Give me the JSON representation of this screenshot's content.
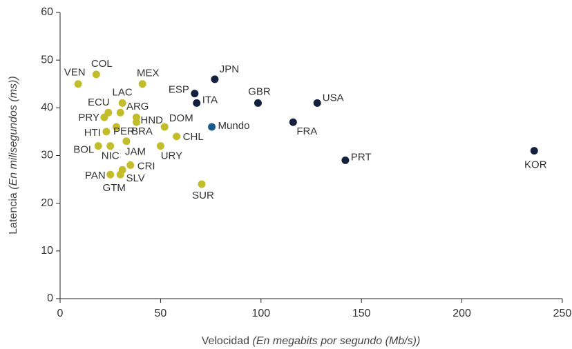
{
  "chart_data": {
    "type": "scatter",
    "labels": [
      "VEN",
      "COL",
      "MEX",
      "ECU",
      "LAC",
      "ARG",
      "PRY",
      "HND",
      "BRA",
      "PER",
      "HTI",
      "DOM",
      "JAM",
      "CHL",
      "BOL",
      "NIC",
      "URY",
      "CRI",
      "SLV",
      "GTM",
      "PAN",
      "SUR",
      "ESP",
      "JPN",
      "ITA",
      "GBR",
      "USA",
      "FRA",
      "PRT",
      "KOR",
      "Mundo"
    ],
    "x": [
      9,
      18,
      41,
      24,
      31,
      30,
      22,
      38,
      38,
      28,
      23,
      52,
      33,
      58,
      19,
      25,
      50,
      35,
      31,
      30,
      25,
      70.5,
      67,
      77,
      68,
      98.5,
      128,
      116,
      142,
      236,
      75.5
    ],
    "y": [
      45,
      47,
      45,
      39,
      41,
      39,
      38,
      38,
      37,
      36,
      35,
      36,
      33,
      34,
      32,
      32,
      32,
      28,
      27,
      26,
      26,
      24,
      43,
      46,
      41,
      41,
      41,
      37,
      29,
      31,
      36
    ],
    "colors": [
      "#c3bc2b",
      "#c3bc2b",
      "#c3bc2b",
      "#c3bc2b",
      "#c3bc2b",
      "#c3bc2b",
      "#c3bc2b",
      "#c3bc2b",
      "#c3bc2b",
      "#c3bc2b",
      "#c3bc2b",
      "#c3bc2b",
      "#c3bc2b",
      "#c3bc2b",
      "#c3bc2b",
      "#c3bc2b",
      "#c3bc2b",
      "#c3bc2b",
      "#c3bc2b",
      "#c3bc2b",
      "#c3bc2b",
      "#c3bc2b",
      "#13213f",
      "#13213f",
      "#13213f",
      "#13213f",
      "#13213f",
      "#13213f",
      "#13213f",
      "#13213f",
      "#1b5a8c"
    ],
    "xlabel": [
      "Velocidad",
      "(En megabits por segundo (Mb/s))"
    ],
    "ylabel": [
      "Latencia",
      "(En milisegundos (ms))"
    ],
    "xlim": [
      0,
      250
    ],
    "xticks": [
      0,
      50,
      100,
      150,
      200,
      250
    ],
    "ylim": [
      0,
      60
    ],
    "yticks": [
      0,
      10,
      20,
      30,
      40,
      50,
      60
    ],
    "grid": false
  }
}
